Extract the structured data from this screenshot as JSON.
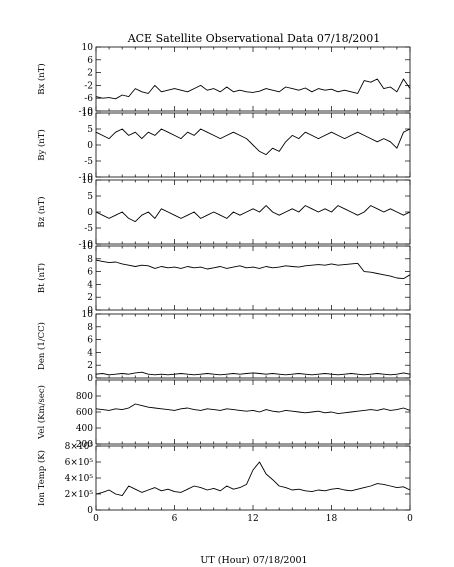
{
  "title": "ACE Satellite Observational Data   07/18/2001",
  "x_axis": {
    "label": "UT (Hour)   07/18/2001",
    "tick_labels": [
      "0",
      "6",
      "12",
      "18",
      "0"
    ],
    "tick_hours": [
      0,
      6,
      12,
      18,
      24
    ],
    "range": [
      0,
      24
    ]
  },
  "chart_data": [
    {
      "type": "line",
      "ylabel": "Bx (nT)",
      "ylim": [
        -10,
        10
      ],
      "tick_values": [
        10,
        6,
        2,
        -2,
        -6,
        -10
      ],
      "tick_labels": [
        "10",
        "6",
        "2",
        "-2",
        "-6",
        "-10"
      ],
      "series": [
        {
          "x": [
            0,
            0.5,
            1,
            1.5,
            2,
            2.5,
            3,
            3.5,
            4,
            4.5,
            5,
            5.5,
            6,
            6.5,
            7,
            7.5,
            8,
            8.5,
            9,
            9.5,
            10,
            10.5,
            11,
            11.5,
            12,
            12.5,
            13,
            13.5,
            14,
            14.5,
            15,
            15.5,
            16,
            16.5,
            17,
            17.5,
            18,
            18.5,
            19,
            19.5,
            20,
            20.5,
            21,
            21.5,
            22,
            22.5,
            23,
            23.5,
            24
          ],
          "y": [
            -5.5,
            -6,
            -5.8,
            -6.2,
            -5,
            -5.5,
            -3,
            -4,
            -4.5,
            -2,
            -4,
            -3.5,
            -3,
            -3.5,
            -4,
            -3,
            -2,
            -3.5,
            -3,
            -4,
            -2.5,
            -4,
            -3.5,
            -4,
            -4.2,
            -3.8,
            -3,
            -3.5,
            -4,
            -2.5,
            -3,
            -3.5,
            -2.8,
            -4,
            -3,
            -3.5,
            -3.2,
            -4,
            -3.5,
            -4,
            -4.5,
            -0.5,
            -1,
            0,
            -3,
            -2.5,
            -4,
            0,
            -3
          ]
        }
      ]
    },
    {
      "type": "line",
      "ylabel": "By (nT)",
      "ylim": [
        -10,
        10
      ],
      "tick_values": [
        10,
        5,
        0,
        -5,
        -10
      ],
      "tick_labels": [
        "10",
        "5",
        "0",
        "-5",
        "-10"
      ],
      "series": [
        {
          "x": [
            0,
            0.5,
            1,
            1.5,
            2,
            2.5,
            3,
            3.5,
            4,
            4.5,
            5,
            5.5,
            6,
            6.5,
            7,
            7.5,
            8,
            8.5,
            9,
            9.5,
            10,
            10.5,
            11,
            11.5,
            12,
            12.5,
            13,
            13.5,
            14,
            14.5,
            15,
            15.5,
            16,
            16.5,
            17,
            17.5,
            18,
            18.5,
            19,
            19.5,
            20,
            20.5,
            21,
            21.5,
            22,
            22.5,
            23,
            23.5,
            24
          ],
          "y": [
            4,
            3,
            2,
            4,
            5,
            3,
            4,
            2,
            4,
            3,
            5,
            4,
            3,
            2,
            4,
            3,
            5,
            4,
            3,
            2,
            3,
            4,
            3,
            2,
            0,
            -2,
            -3,
            -1,
            -2,
            1,
            3,
            2,
            4,
            3,
            2,
            3,
            4,
            3,
            2,
            3,
            4,
            3,
            2,
            1,
            2,
            1,
            -1,
            4,
            5
          ]
        }
      ]
    },
    {
      "type": "line",
      "ylabel": "Bz (nT)",
      "ylim": [
        -10,
        10
      ],
      "tick_values": [
        10,
        5,
        0,
        -5,
        -10
      ],
      "tick_labels": [
        "10",
        "5",
        "0",
        "-5",
        "-10"
      ],
      "series": [
        {
          "x": [
            0,
            0.5,
            1,
            1.5,
            2,
            2.5,
            3,
            3.5,
            4,
            4.5,
            5,
            5.5,
            6,
            6.5,
            7,
            7.5,
            8,
            8.5,
            9,
            9.5,
            10,
            10.5,
            11,
            11.5,
            12,
            12.5,
            13,
            13.5,
            14,
            14.5,
            15,
            15.5,
            16,
            16.5,
            17,
            17.5,
            18,
            18.5,
            19,
            19.5,
            20,
            20.5,
            21,
            21.5,
            22,
            22.5,
            23,
            23.5,
            24
          ],
          "y": [
            0,
            -1,
            -2,
            -1,
            0,
            -2,
            -3,
            -1,
            0,
            -2,
            1,
            0,
            -1,
            -2,
            -1,
            0,
            -2,
            -1,
            0,
            -1,
            -2,
            0,
            -1,
            0,
            1,
            0,
            2,
            0,
            -1,
            0,
            1,
            0,
            2,
            1,
            0,
            1,
            0,
            2,
            1,
            0,
            -1,
            0,
            2,
            1,
            0,
            1,
            0,
            -1,
            0
          ]
        }
      ]
    },
    {
      "type": "line",
      "ylabel": "Bt (nT)",
      "ylim": [
        0,
        10
      ],
      "tick_values": [
        10,
        8,
        6,
        4,
        2,
        0
      ],
      "tick_labels": [
        "10",
        "8",
        "6",
        "4",
        "2",
        "0"
      ],
      "series": [
        {
          "x": [
            0,
            0.5,
            1,
            1.5,
            2,
            2.5,
            3,
            3.5,
            4,
            4.5,
            5,
            5.5,
            6,
            6.5,
            7,
            7.5,
            8,
            8.5,
            9,
            9.5,
            10,
            10.5,
            11,
            11.5,
            12,
            12.5,
            13,
            13.5,
            14,
            14.5,
            15,
            15.5,
            16,
            16.5,
            17,
            17.5,
            18,
            18.5,
            19,
            19.5,
            20,
            20.5,
            21,
            21.5,
            22,
            22.5,
            23,
            23.5,
            24
          ],
          "y": [
            7.8,
            7.6,
            7.4,
            7.5,
            7.2,
            7,
            6.8,
            7,
            6.9,
            6.5,
            6.8,
            6.6,
            6.7,
            6.5,
            6.8,
            6.6,
            6.7,
            6.4,
            6.6,
            6.8,
            6.5,
            6.7,
            6.9,
            6.6,
            6.7,
            6.5,
            6.8,
            6.6,
            6.7,
            6.9,
            6.8,
            6.7,
            6.9,
            7,
            7.1,
            7,
            7.2,
            7,
            7.1,
            7.2,
            7.3,
            6,
            5.9,
            5.7,
            5.5,
            5.3,
            5,
            4.9,
            5.5
          ]
        }
      ]
    },
    {
      "type": "line",
      "ylabel": "Den (1/CC)",
      "ylim": [
        0,
        10
      ],
      "tick_values": [
        10,
        8,
        6,
        4,
        2,
        0
      ],
      "tick_labels": [
        "10",
        "8",
        "6",
        "4",
        "2",
        "0"
      ],
      "series": [
        {
          "x": [
            0,
            0.5,
            1,
            1.5,
            2,
            2.5,
            3,
            3.5,
            4,
            4.5,
            5,
            5.5,
            6,
            6.5,
            7,
            7.5,
            8,
            8.5,
            9,
            9.5,
            10,
            10.5,
            11,
            11.5,
            12,
            12.5,
            13,
            13.5,
            14,
            14.5,
            15,
            15.5,
            16,
            16.5,
            17,
            17.5,
            18,
            18.5,
            19,
            19.5,
            20,
            20.5,
            21,
            21.5,
            22,
            22.5,
            23,
            23.5,
            24
          ],
          "y": [
            0.6,
            0.7,
            0.5,
            0.6,
            0.7,
            0.6,
            0.8,
            0.9,
            0.6,
            0.5,
            0.6,
            0.5,
            0.6,
            0.7,
            0.6,
            0.5,
            0.6,
            0.7,
            0.6,
            0.5,
            0.6,
            0.7,
            0.6,
            0.7,
            0.8,
            0.7,
            0.6,
            0.7,
            0.6,
            0.5,
            0.6,
            0.7,
            0.6,
            0.5,
            0.6,
            0.7,
            0.6,
            0.5,
            0.6,
            0.7,
            0.6,
            0.5,
            0.6,
            0.7,
            0.6,
            0.5,
            0.6,
            0.8,
            0.6
          ]
        }
      ]
    },
    {
      "type": "line",
      "ylabel": "Vel (Km/sec)",
      "ylim": [
        200,
        1000
      ],
      "tick_values": [
        800,
        600,
        400,
        200
      ],
      "tick_labels": [
        "800",
        "600",
        "400",
        "200"
      ],
      "series": [
        {
          "x": [
            0,
            0.5,
            1,
            1.5,
            2,
            2.5,
            3,
            3.5,
            4,
            4.5,
            5,
            5.5,
            6,
            6.5,
            7,
            7.5,
            8,
            8.5,
            9,
            9.5,
            10,
            10.5,
            11,
            11.5,
            12,
            12.5,
            13,
            13.5,
            14,
            14.5,
            15,
            15.5,
            16,
            16.5,
            17,
            17.5,
            18,
            18.5,
            19,
            19.5,
            20,
            20.5,
            21,
            21.5,
            22,
            22.5,
            23,
            23.5,
            24
          ],
          "y": [
            640,
            630,
            620,
            640,
            630,
            650,
            700,
            680,
            660,
            650,
            640,
            630,
            620,
            640,
            650,
            630,
            620,
            640,
            630,
            620,
            640,
            630,
            620,
            610,
            620,
            600,
            630,
            610,
            600,
            620,
            610,
            600,
            590,
            600,
            610,
            590,
            600,
            580,
            590,
            600,
            610,
            620,
            630,
            620,
            640,
            620,
            630,
            650,
            620
          ]
        }
      ]
    },
    {
      "type": "line",
      "ylabel": "Ion Temp (K)",
      "ylim": [
        0,
        800000
      ],
      "tick_values": [
        800000,
        600000,
        400000,
        200000,
        0
      ],
      "tick_labels": [
        "8×10⁵",
        "6×10⁵",
        "4×10⁵",
        "2×10⁵",
        "0"
      ],
      "series": [
        {
          "x": [
            0,
            0.5,
            1,
            1.5,
            2,
            2.5,
            3,
            3.5,
            4,
            4.5,
            5,
            5.5,
            6,
            6.5,
            7,
            7.5,
            8,
            8.5,
            9,
            9.5,
            10,
            10.5,
            11,
            11.5,
            12,
            12.5,
            13,
            13.5,
            14,
            14.5,
            15,
            15.5,
            16,
            16.5,
            17,
            17.5,
            18,
            18.5,
            19,
            19.5,
            20,
            20.5,
            21,
            21.5,
            22,
            22.5,
            23,
            23.5,
            24
          ],
          "y": [
            200000,
            220000,
            250000,
            200000,
            180000,
            300000,
            260000,
            220000,
            250000,
            280000,
            240000,
            260000,
            230000,
            220000,
            260000,
            300000,
            280000,
            250000,
            270000,
            240000,
            300000,
            260000,
            280000,
            320000,
            500000,
            600000,
            450000,
            380000,
            300000,
            280000,
            250000,
            260000,
            240000,
            230000,
            250000,
            240000,
            260000,
            270000,
            250000,
            240000,
            260000,
            280000,
            300000,
            330000,
            320000,
            300000,
            280000,
            290000,
            250000
          ]
        }
      ]
    }
  ]
}
